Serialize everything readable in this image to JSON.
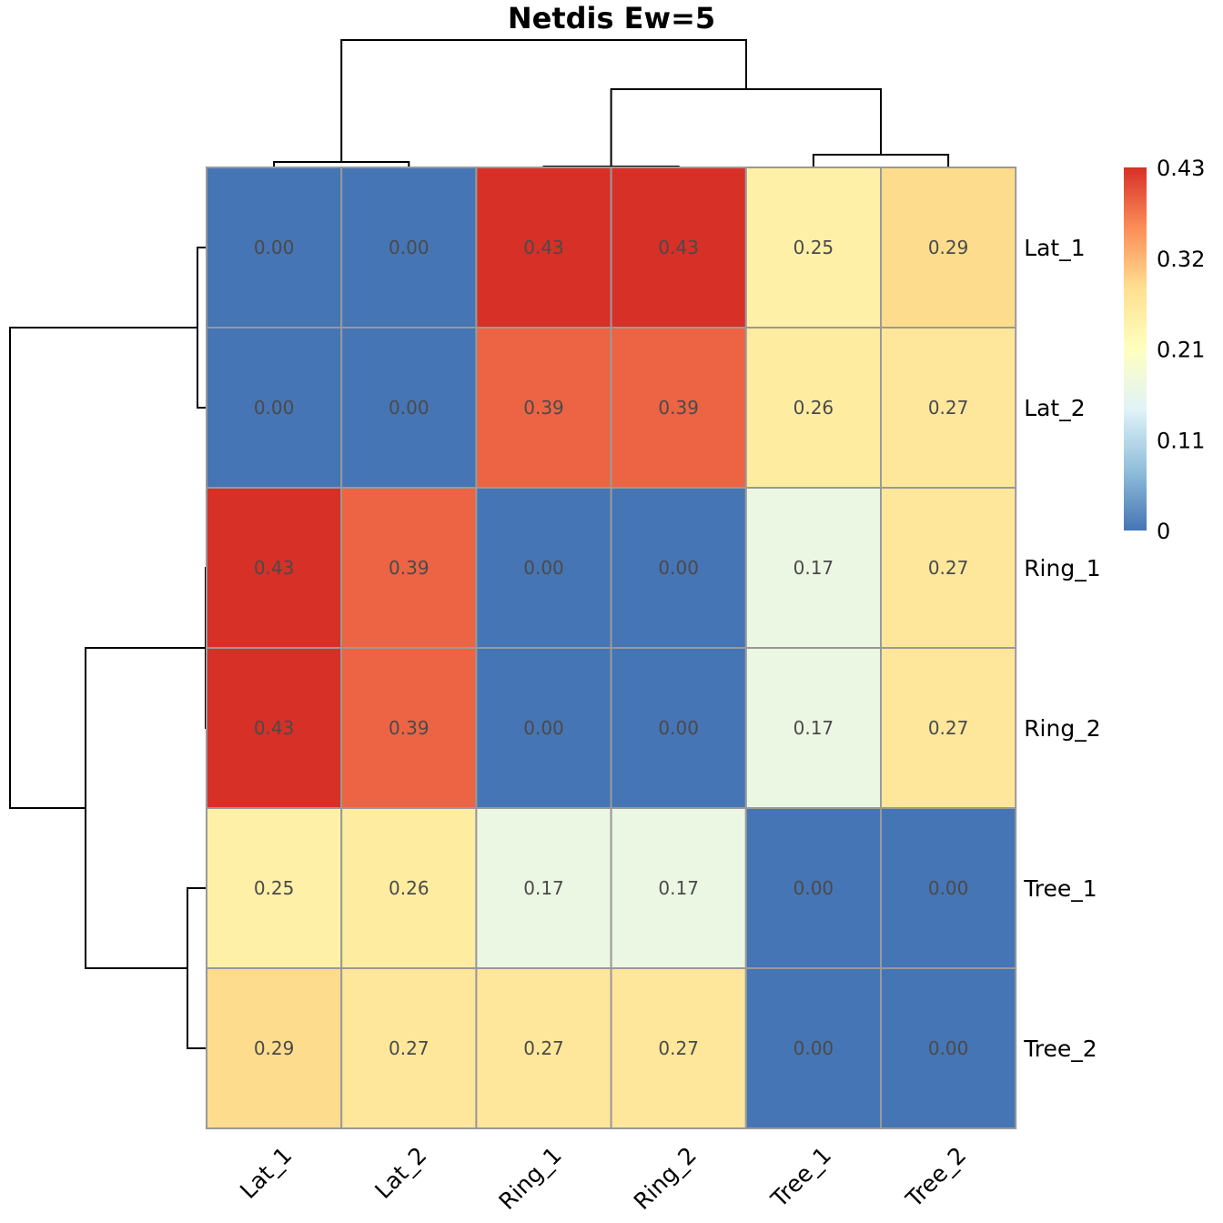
{
  "chart_data": {
    "type": "heatmap",
    "title": "Netdis Ew=5",
    "rows": [
      "Lat_1",
      "Lat_2",
      "Ring_1",
      "Ring_2",
      "Tree_1",
      "Tree_2"
    ],
    "columns": [
      "Lat_1",
      "Lat_2",
      "Ring_1",
      "Ring_2",
      "Tree_1",
      "Tree_2"
    ],
    "values": [
      [
        0.0,
        0.0,
        0.43,
        0.43,
        0.25,
        0.29
      ],
      [
        0.0,
        0.0,
        0.39,
        0.39,
        0.26,
        0.27
      ],
      [
        0.43,
        0.39,
        0.0,
        0.0,
        0.17,
        0.27
      ],
      [
        0.43,
        0.39,
        0.0,
        0.0,
        0.17,
        0.27
      ],
      [
        0.25,
        0.26,
        0.17,
        0.17,
        0.0,
        0.0
      ],
      [
        0.29,
        0.27,
        0.27,
        0.27,
        0.0,
        0.0
      ]
    ],
    "cell_labels": [
      [
        "0.00",
        "0.00",
        "0.43",
        "0.43",
        "0.25",
        "0.29"
      ],
      [
        "0.00",
        "0.00",
        "0.39",
        "0.39",
        "0.26",
        "0.27"
      ],
      [
        "0.43",
        "0.39",
        "0.00",
        "0.00",
        "0.17",
        "0.27"
      ],
      [
        "0.43",
        "0.39",
        "0.00",
        "0.00",
        "0.17",
        "0.27"
      ],
      [
        "0.25",
        "0.26",
        "0.17",
        "0.17",
        "0.00",
        "0.00"
      ],
      [
        "0.29",
        "0.27",
        "0.27",
        "0.27",
        "0.00",
        "0.00"
      ]
    ],
    "legend": {
      "range": [
        0,
        0.43
      ],
      "ticks": [
        {
          "value": 0,
          "label": "0"
        },
        {
          "value": 0.1075,
          "label": "0.11"
        },
        {
          "value": 0.215,
          "label": "0.21"
        },
        {
          "value": 0.3225,
          "label": "0.32"
        },
        {
          "value": 0.43,
          "label": "0.43"
        }
      ],
      "colors": [
        "#4575b4",
        "#91bfdb",
        "#e0f3f8",
        "#ffffbf",
        "#fee090",
        "#fc8d59",
        "#d73027"
      ],
      "placement": "right"
    },
    "cell_border_color": "#999999",
    "dendrogram": {
      "rows": true,
      "columns": true,
      "cluster_order": [
        [
          "Lat_1",
          "Lat_2"
        ],
        [
          "Ring_1",
          "Ring_2"
        ],
        [
          "Tree_1",
          "Tree_2"
        ]
      ]
    }
  }
}
